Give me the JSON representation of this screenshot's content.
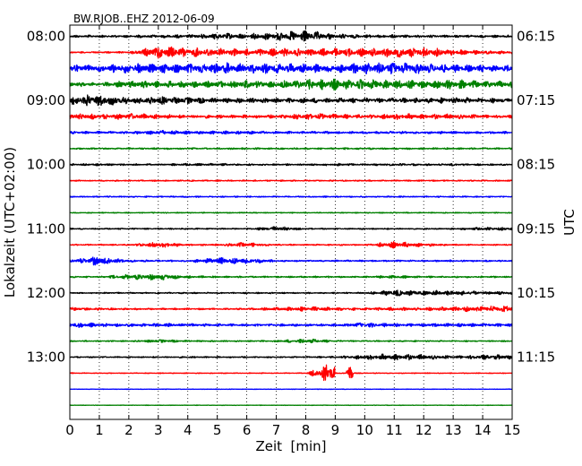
{
  "chart_data": {
    "type": "line",
    "subtype": "helicorder",
    "title": "BW.RJOB..EHZ 2012-06-09",
    "xlabel": "Zeit  [min]",
    "ylabel_left": "Lokalzeit (UTC+02:00)",
    "ylabel_right": "UTC",
    "xlim": [
      0,
      15
    ],
    "x_ticks": [
      "0",
      "1",
      "2",
      "3",
      "4",
      "5",
      "6",
      "7",
      "8",
      "9",
      "10",
      "11",
      "12",
      "13",
      "14",
      "15"
    ],
    "grid": "vertical-dotted",
    "left_ticks": [
      "08:00",
      "09:00",
      "10:00",
      "11:00",
      "12:00",
      "13:00"
    ],
    "right_ticks": [
      "06:15",
      "07:15",
      "08:15",
      "09:15",
      "10:15",
      "11:15"
    ],
    "trace_colors": [
      "#000000",
      "#ff0000",
      "#0000ff",
      "#008000"
    ],
    "traces": [
      {
        "start": "08:00",
        "amplitude": [
          0.15,
          0.15,
          0.15,
          0.2,
          0.2,
          0.4,
          0.3,
          0.5,
          0.7,
          0.3,
          0.2,
          0.2,
          0.15,
          0.15,
          0.15
        ]
      },
      {
        "start": "08:15",
        "amplitude": [
          0.1,
          0.1,
          0.1,
          0.8,
          0.6,
          0.5,
          0.4,
          0.5,
          0.4,
          0.5,
          0.5,
          0.6,
          0.6,
          0.4,
          0.2
        ]
      },
      {
        "start": "08:30",
        "amplitude": [
          0.5,
          0.4,
          0.6,
          0.6,
          0.6,
          0.7,
          0.6,
          0.6,
          0.6,
          0.5,
          0.7,
          0.8,
          0.6,
          0.5,
          0.4
        ]
      },
      {
        "start": "08:45",
        "amplitude": [
          0.3,
          0.2,
          0.5,
          0.4,
          0.4,
          0.4,
          0.5,
          0.4,
          0.6,
          0.7,
          0.6,
          0.6,
          0.5,
          0.6,
          0.4
        ]
      },
      {
        "start": "09:00",
        "amplitude": [
          0.5,
          0.8,
          0.4,
          0.5,
          0.4,
          0.3,
          0.3,
          0.3,
          0.3,
          0.3,
          0.3,
          0.3,
          0.3,
          0.4,
          0.3
        ]
      },
      {
        "start": "09:15",
        "amplitude": [
          0.4,
          0.3,
          0.4,
          0.3,
          0.2,
          0.2,
          0.2,
          0.2,
          0.4,
          0.3,
          0.2,
          0.4,
          0.3,
          0.3,
          0.2
        ]
      },
      {
        "start": "09:30",
        "amplitude": [
          0.15,
          0.15,
          0.15,
          0.3,
          0.2,
          0.2,
          0.2,
          0.15,
          0.15,
          0.15,
          0.15,
          0.15,
          0.15,
          0.15,
          0.15
        ]
      },
      {
        "start": "09:45",
        "amplitude": [
          0.1,
          0.1,
          0.1,
          0.1,
          0.1,
          0.1,
          0.1,
          0.1,
          0.1,
          0.1,
          0.1,
          0.1,
          0.1,
          0.1,
          0.1
        ]
      },
      {
        "start": "10:00",
        "amplitude": [
          0.1,
          0.15,
          0.1,
          0.1,
          0.15,
          0.15,
          0.1,
          0.1,
          0.1,
          0.15,
          0.1,
          0.15,
          0.1,
          0.15,
          0.1
        ]
      },
      {
        "start": "10:15",
        "amplitude": [
          0.08,
          0.08,
          0.08,
          0.08,
          0.08,
          0.08,
          0.08,
          0.08,
          0.08,
          0.08,
          0.08,
          0.08,
          0.08,
          0.08,
          0.08
        ]
      },
      {
        "start": "10:30",
        "amplitude": [
          0.08,
          0.08,
          0.08,
          0.08,
          0.08,
          0.08,
          0.08,
          0.08,
          0.08,
          0.08,
          0.08,
          0.08,
          0.08,
          0.08,
          0.08
        ]
      },
      {
        "start": "10:45",
        "amplitude": [
          0.06,
          0.06,
          0.06,
          0.06,
          0.06,
          0.06,
          0.06,
          0.06,
          0.06,
          0.06,
          0.06,
          0.06,
          0.06,
          0.06,
          0.06
        ]
      },
      {
        "start": "11:00",
        "amplitude": [
          0.08,
          0.08,
          0.08,
          0.08,
          0.08,
          0.08,
          0.08,
          0.3,
          0.08,
          0.08,
          0.08,
          0.08,
          0.08,
          0.08,
          0.2
        ]
      },
      {
        "start": "11:15",
        "amplitude": [
          0.08,
          0.08,
          0.08,
          0.4,
          0.1,
          0.1,
          0.3,
          0.08,
          0.08,
          0.08,
          0.08,
          0.4,
          0.2,
          0.08,
          0.08
        ]
      },
      {
        "start": "11:30",
        "amplitude": [
          0.15,
          0.6,
          0.15,
          0.1,
          0.1,
          0.4,
          0.4,
          0.1,
          0.1,
          0.1,
          0.1,
          0.1,
          0.1,
          0.1,
          0.1
        ]
      },
      {
        "start": "11:45",
        "amplitude": [
          0.1,
          0.1,
          0.3,
          0.4,
          0.15,
          0.1,
          0.1,
          0.1,
          0.1,
          0.1,
          0.1,
          0.2,
          0.1,
          0.1,
          0.1
        ]
      },
      {
        "start": "12:00",
        "amplitude": [
          0.08,
          0.08,
          0.08,
          0.08,
          0.08,
          0.08,
          0.08,
          0.08,
          0.08,
          0.08,
          0.08,
          0.4,
          0.3,
          0.3,
          0.2
        ]
      },
      {
        "start": "12:15",
        "amplitude": [
          0.2,
          0.15,
          0.1,
          0.1,
          0.1,
          0.1,
          0.1,
          0.2,
          0.3,
          0.2,
          0.15,
          0.2,
          0.2,
          0.3,
          0.4
        ]
      },
      {
        "start": "12:30",
        "amplitude": [
          0.4,
          0.2,
          0.2,
          0.2,
          0.2,
          0.15,
          0.15,
          0.15,
          0.15,
          0.15,
          0.3,
          0.2,
          0.2,
          0.2,
          0.2
        ]
      },
      {
        "start": "12:45",
        "amplitude": [
          0.08,
          0.08,
          0.08,
          0.2,
          0.1,
          0.08,
          0.08,
          0.1,
          0.3,
          0.1,
          0.08,
          0.08,
          0.08,
          0.08,
          0.08
        ]
      },
      {
        "start": "13:00",
        "amplitude": [
          0.08,
          0.08,
          0.08,
          0.08,
          0.1,
          0.08,
          0.08,
          0.08,
          0.08,
          0.1,
          0.3,
          0.4,
          0.3,
          0.15,
          0.3
        ]
      },
      {
        "start": "13:15",
        "amplitude": [
          0.05,
          0.05,
          0.05,
          0.05,
          0.05,
          0.05,
          0.05,
          0.05,
          0.05,
          1.6,
          0.05,
          0.05,
          0.05,
          0.05,
          0.05
        ]
      },
      {
        "start": "13:30",
        "amplitude": [
          0.03,
          0.03,
          0.03,
          0.03,
          0.03,
          0.03,
          0.03,
          0.03,
          0.03,
          0.03,
          0.03,
          0.03,
          0.03,
          0.03,
          0.03
        ]
      },
      {
        "start": "13:45",
        "amplitude": [
          0.03,
          0.03,
          0.03,
          0.03,
          0.03,
          0.03,
          0.03,
          0.03,
          0.03,
          0.03,
          0.03,
          0.03,
          0.03,
          0.03,
          0.03
        ]
      }
    ]
  }
}
